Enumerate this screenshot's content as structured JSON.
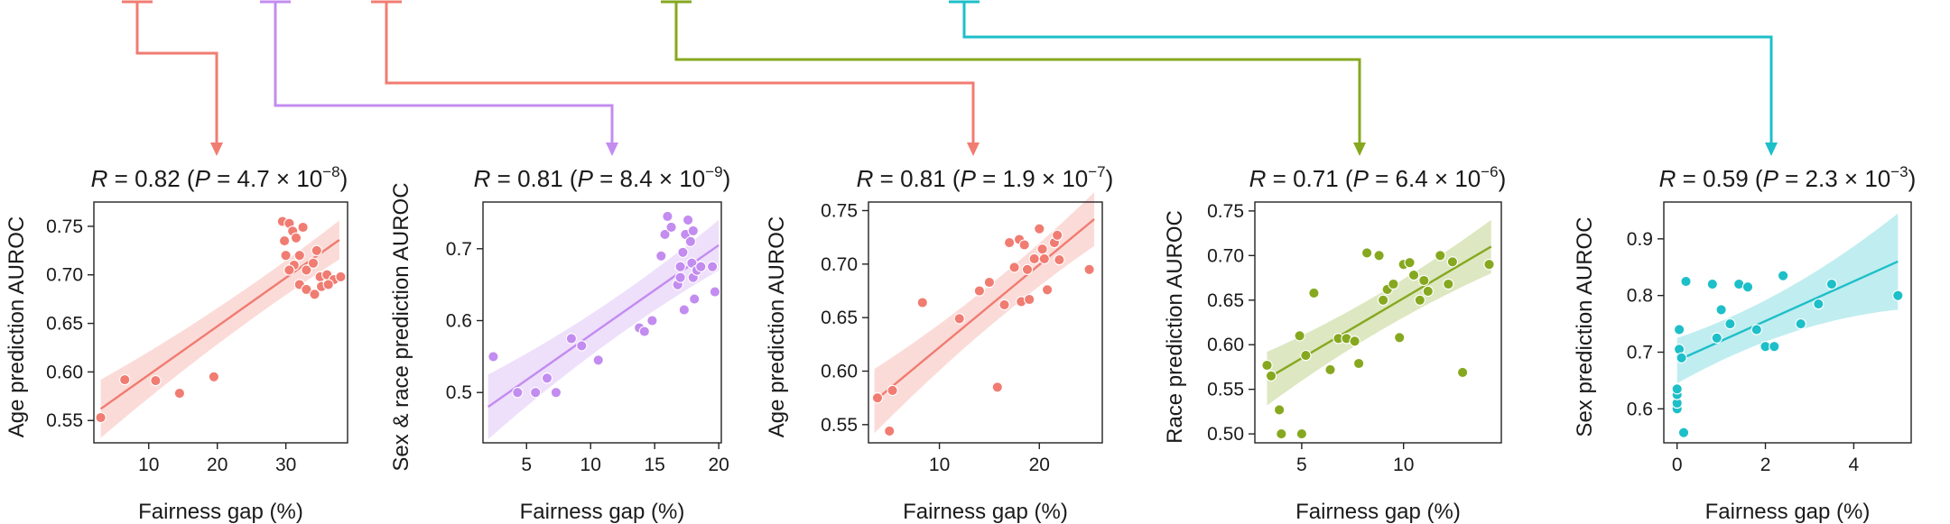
{
  "chart_data": [
    {
      "type": "scatter",
      "color": "#F07C72",
      "title": {
        "r": "0.82",
        "p_mant": "4.7",
        "p_exp": "-8"
      },
      "xlabel": "Fairness gap (%)",
      "ylabel": "Age prediction AUROC",
      "xlim": [
        2,
        39
      ],
      "ylim": [
        0.527,
        0.775
      ],
      "xticks": [
        10,
        20,
        30
      ],
      "yticks": [
        0.55,
        0.6,
        0.65,
        0.7,
        0.75
      ],
      "ytick_labels": [
        "0.55",
        "0.60",
        "0.65",
        "0.70",
        "0.75"
      ],
      "fit": {
        "x": [
          3,
          37.8
        ],
        "y": [
          0.562,
          0.736
        ]
      },
      "band_halfwidth": [
        0.03,
        0.012,
        0.02
      ],
      "points": [
        [
          3,
          0.553
        ],
        [
          6.5,
          0.592
        ],
        [
          11,
          0.591
        ],
        [
          14.5,
          0.578
        ],
        [
          19.5,
          0.595
        ],
        [
          29.5,
          0.755
        ],
        [
          30.5,
          0.753
        ],
        [
          31,
          0.745
        ],
        [
          29.8,
          0.735
        ],
        [
          31.5,
          0.738
        ],
        [
          32.5,
          0.749
        ],
        [
          30,
          0.72
        ],
        [
          31.2,
          0.71
        ],
        [
          32,
          0.72
        ],
        [
          33,
          0.705
        ],
        [
          34,
          0.712
        ],
        [
          35,
          0.698
        ],
        [
          36,
          0.7
        ],
        [
          37,
          0.695
        ],
        [
          38,
          0.698
        ],
        [
          32,
          0.69
        ],
        [
          33,
          0.685
        ],
        [
          34.2,
          0.68
        ],
        [
          35.2,
          0.688
        ],
        [
          36.2,
          0.69
        ],
        [
          30.5,
          0.705
        ],
        [
          34.5,
          0.725
        ]
      ]
    },
    {
      "type": "scatter",
      "color": "#C38CF0",
      "title": {
        "r": "0.81",
        "p_mant": "8.4",
        "p_exp": "-9"
      },
      "xlabel": "Fairness gap (%)",
      "ylabel": "Sex & race prediction AUROC",
      "xlim": [
        1.6,
        20.2
      ],
      "ylim": [
        0.43,
        0.765
      ],
      "xticks": [
        5,
        10,
        15,
        20
      ],
      "yticks": [
        0.5,
        0.6,
        0.7
      ],
      "ytick_labels": [
        "0.5",
        "0.6",
        "0.7"
      ],
      "fit": {
        "x": [
          2,
          20
        ],
        "y": [
          0.48,
          0.705
        ]
      },
      "band_halfwidth": [
        0.045,
        0.016,
        0.035
      ],
      "points": [
        [
          2.4,
          0.55
        ],
        [
          4.3,
          0.5
        ],
        [
          5.7,
          0.5
        ],
        [
          6.6,
          0.52
        ],
        [
          7.3,
          0.5
        ],
        [
          8.5,
          0.575
        ],
        [
          9.3,
          0.565
        ],
        [
          10.6,
          0.545
        ],
        [
          13.8,
          0.59
        ],
        [
          14.2,
          0.585
        ],
        [
          14.8,
          0.6
        ],
        [
          15.5,
          0.69
        ],
        [
          15.8,
          0.72
        ],
        [
          16.0,
          0.745
        ],
        [
          16.3,
          0.73
        ],
        [
          16.8,
          0.65
        ],
        [
          17.0,
          0.675
        ],
        [
          17.2,
          0.695
        ],
        [
          17.4,
          0.72
        ],
        [
          17.6,
          0.74
        ],
        [
          17.8,
          0.71
        ],
        [
          17.9,
          0.68
        ],
        [
          18.0,
          0.66
        ],
        [
          18.1,
          0.63
        ],
        [
          18.3,
          0.67
        ],
        [
          18.6,
          0.675
        ],
        [
          19.5,
          0.675
        ],
        [
          19.7,
          0.64
        ],
        [
          17.3,
          0.615
        ],
        [
          18.0,
          0.725
        ],
        [
          17.0,
          0.66
        ]
      ]
    },
    {
      "type": "scatter",
      "color": "#F07C72",
      "title": {
        "r": "0.81",
        "p_mant": "1.9",
        "p_exp": "-7"
      },
      "xlabel": "Fairness gap (%)",
      "ylabel": "Age prediction AUROC",
      "xlim": [
        2.9,
        26.3
      ],
      "ylim": [
        0.533,
        0.758
      ],
      "xticks": [
        10,
        20
      ],
      "yticks": [
        0.55,
        0.6,
        0.65,
        0.7,
        0.75
      ],
      "ytick_labels": [
        "0.55",
        "0.60",
        "0.65",
        "0.70",
        "0.75"
      ],
      "fit": {
        "x": [
          3.5,
          25.5
        ],
        "y": [
          0.572,
          0.742
        ]
      },
      "band_halfwidth": [
        0.03,
        0.011,
        0.025
      ],
      "points": [
        [
          3.8,
          0.575
        ],
        [
          5,
          0.544
        ],
        [
          5.3,
          0.582
        ],
        [
          8.3,
          0.664
        ],
        [
          12,
          0.649
        ],
        [
          14,
          0.675
        ],
        [
          15,
          0.683
        ],
        [
          15.8,
          0.585
        ],
        [
          16.5,
          0.662
        ],
        [
          17,
          0.72
        ],
        [
          17.5,
          0.697
        ],
        [
          18,
          0.723
        ],
        [
          18.2,
          0.665
        ],
        [
          18.5,
          0.718
        ],
        [
          18.8,
          0.695
        ],
        [
          19,
          0.667
        ],
        [
          19.5,
          0.705
        ],
        [
          20,
          0.733
        ],
        [
          20.3,
          0.714
        ],
        [
          20.5,
          0.705
        ],
        [
          20.8,
          0.676
        ],
        [
          21.5,
          0.72
        ],
        [
          21.8,
          0.727
        ],
        [
          22,
          0.704
        ],
        [
          25,
          0.695
        ]
      ]
    },
    {
      "type": "scatter",
      "color": "#86A81F",
      "title": {
        "r": "0.71",
        "p_mant": "6.4",
        "p_exp": "-6"
      },
      "xlabel": "Fairness gap (%)",
      "ylabel": "Race prediction AUROC",
      "xlim": [
        2.7,
        14.8
      ],
      "ylim": [
        0.49,
        0.76
      ],
      "xticks": [
        5,
        10
      ],
      "yticks": [
        0.5,
        0.55,
        0.6,
        0.65,
        0.7,
        0.75
      ],
      "ytick_labels": [
        "0.50",
        "0.55",
        "0.60",
        "0.65",
        "0.70",
        "0.75"
      ],
      "fit": {
        "x": [
          3.3,
          14.3
        ],
        "y": [
          0.562,
          0.71
        ]
      },
      "band_halfwidth": [
        0.03,
        0.012,
        0.03
      ],
      "points": [
        [
          3.3,
          0.577
        ],
        [
          3.5,
          0.565
        ],
        [
          3.9,
          0.527
        ],
        [
          4.0,
          0.5
        ],
        [
          4.9,
          0.61
        ],
        [
          5.0,
          0.5
        ],
        [
          5.2,
          0.588
        ],
        [
          5.6,
          0.658
        ],
        [
          6.4,
          0.572
        ],
        [
          6.8,
          0.607
        ],
        [
          7.2,
          0.607
        ],
        [
          7.6,
          0.604
        ],
        [
          7.8,
          0.579
        ],
        [
          8.2,
          0.703
        ],
        [
          8.8,
          0.7
        ],
        [
          9.0,
          0.65
        ],
        [
          9.2,
          0.662
        ],
        [
          9.5,
          0.668
        ],
        [
          9.8,
          0.608
        ],
        [
          10.0,
          0.69
        ],
        [
          10.3,
          0.692
        ],
        [
          10.5,
          0.678
        ],
        [
          10.8,
          0.65
        ],
        [
          11.0,
          0.672
        ],
        [
          11.2,
          0.66
        ],
        [
          11.8,
          0.7
        ],
        [
          12.2,
          0.668
        ],
        [
          12.4,
          0.693
        ],
        [
          12.9,
          0.569
        ],
        [
          14.2,
          0.69
        ]
      ]
    },
    {
      "type": "scatter",
      "color": "#1DBFC8",
      "title": {
        "r": "0.59",
        "p_mant": "2.3",
        "p_exp": "-3"
      },
      "xlabel": "Fairness gap (%)",
      "ylabel": "Sex prediction AUROC",
      "xlim": [
        -0.3,
        5.3
      ],
      "ylim": [
        0.54,
        0.965
      ],
      "xticks": [
        0,
        2,
        4
      ],
      "yticks": [
        0.6,
        0.7,
        0.8,
        0.9
      ],
      "ytick_labels": [
        "0.6",
        "0.7",
        "0.8",
        "0.9"
      ],
      "fit": {
        "x": [
          0,
          5
        ],
        "y": [
          0.685,
          0.86
        ]
      },
      "band_halfwidth": [
        0.04,
        0.018,
        0.085
      ],
      "points": [
        [
          0.0,
          0.6
        ],
        [
          0.0,
          0.61
        ],
        [
          0.0,
          0.625
        ],
        [
          0.0,
          0.635
        ],
        [
          0.05,
          0.705
        ],
        [
          0.05,
          0.74
        ],
        [
          0.1,
          0.69
        ],
        [
          0.15,
          0.558
        ],
        [
          0.2,
          0.825
        ],
        [
          0.8,
          0.82
        ],
        [
          0.9,
          0.725
        ],
        [
          1.0,
          0.775
        ],
        [
          1.2,
          0.75
        ],
        [
          1.4,
          0.82
        ],
        [
          1.6,
          0.815
        ],
        [
          1.8,
          0.74
        ],
        [
          2.0,
          0.71
        ],
        [
          2.2,
          0.71
        ],
        [
          2.4,
          0.835
        ],
        [
          2.8,
          0.75
        ],
        [
          3.2,
          0.785
        ],
        [
          3.5,
          0.82
        ],
        [
          5.0,
          0.8
        ]
      ]
    }
  ]
}
